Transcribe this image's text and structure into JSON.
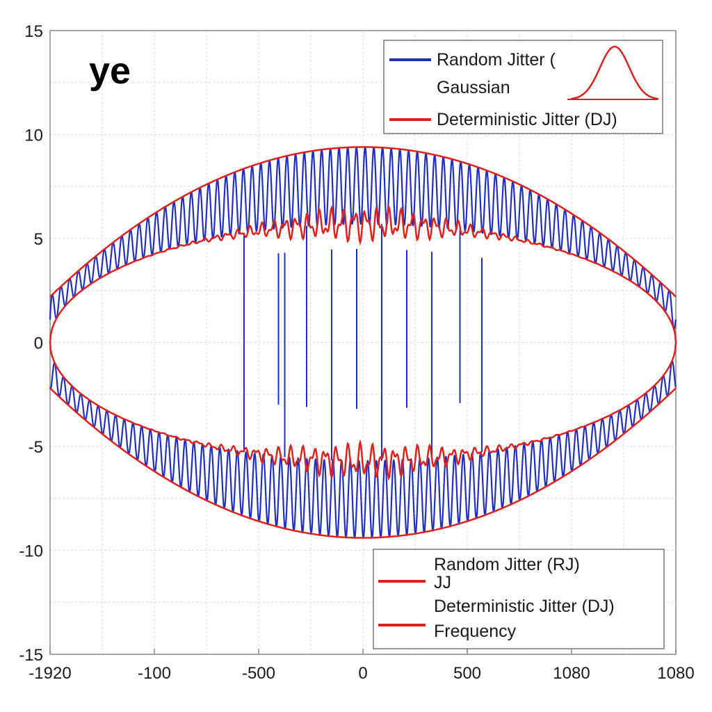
{
  "chart_data": {
    "type": "line",
    "panel_label": "ye",
    "xlabel": "",
    "ylabel": "",
    "ylim": [
      -15,
      15
    ],
    "y_ticks": [
      "15",
      "10",
      "5",
      "0",
      "-5",
      "-10",
      "-15"
    ],
    "x_ticks": [
      "-1920",
      "-100",
      "-500",
      "0",
      "500",
      "1080",
      "1080"
    ],
    "grid": true,
    "series": [
      {
        "name": "Random Jitter (",
        "color": "#1f2fc4",
        "outer_amplitude": 9.4,
        "inner_amplitude": 5.7,
        "edge_amplitude": 2.2
      },
      {
        "name": "Deterministic Jitter (DJ)",
        "color": "#e0201b",
        "outer_amplitude": 9.4,
        "inner_amplitude": 5.7
      }
    ],
    "legend_top": {
      "placement": "top-right",
      "entries": [
        {
          "label": "Random Jitter (",
          "color": "#1f2fc4"
        },
        {
          "label": "Gaussian",
          "color": ""
        },
        {
          "label": "Deterministic Jitter (DJ)",
          "color": "#e0201b"
        }
      ],
      "inset_icon": "gaussian-curve-icon"
    },
    "legend_bottom": {
      "placement": "bottom-right",
      "entries": [
        {
          "label": "Random Jitter (RJ)",
          "color": ""
        },
        {
          "label": "JJ",
          "color": "#e0201b"
        },
        {
          "label": "Deterministic Jitter (DJ)",
          "color": ""
        },
        {
          "label": "Frequency",
          "color": "#e0201b"
        }
      ]
    }
  }
}
